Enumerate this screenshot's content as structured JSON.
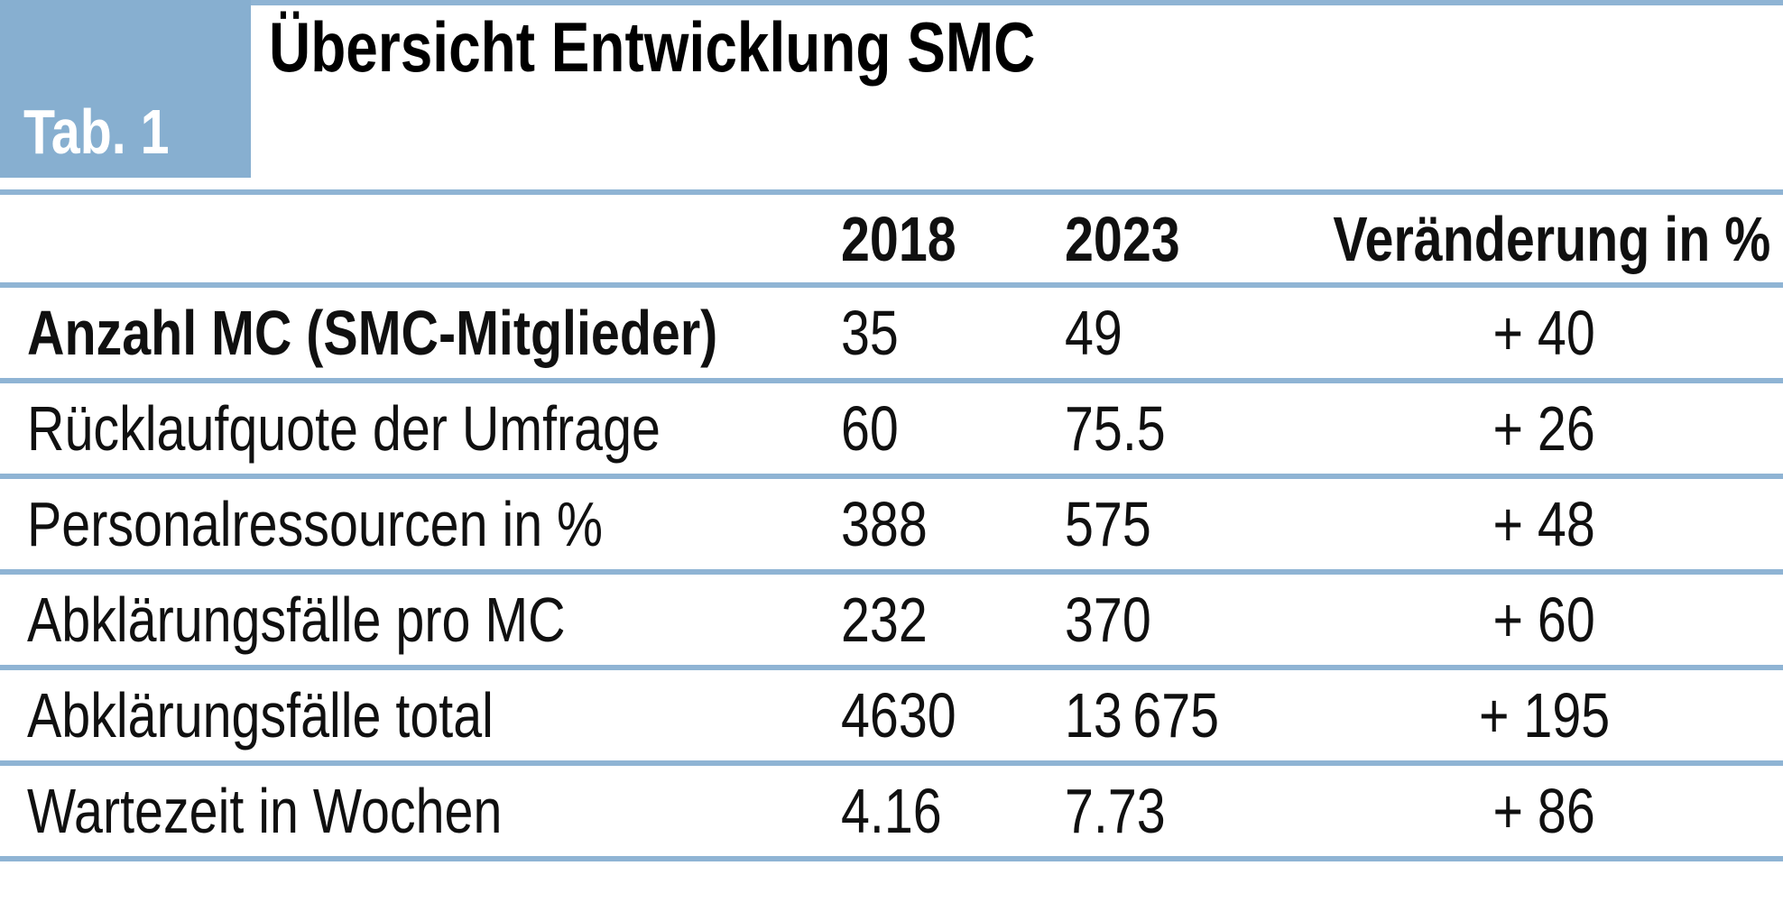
{
  "figure": {
    "tab_label": "Tab. 1",
    "title": "Übersicht Entwicklung SMC"
  },
  "table": {
    "header": {
      "year1": "2018",
      "year2": "2023",
      "change": "Veränderung in %"
    },
    "rows": [
      {
        "label": "Anzahl MC (SMC-Mitglieder)",
        "y2018": "35",
        "y2023": "49",
        "change": "+ 40"
      },
      {
        "label": "Rücklaufquote der Umfrage",
        "y2018": "60",
        "y2023": "75.5",
        "change": "+ 26"
      },
      {
        "label": "Personalressourcen in %",
        "y2018": "388",
        "y2023": "575",
        "change": "+ 48"
      },
      {
        "label": "Abklärungsfälle pro MC",
        "y2018": "232",
        "y2023": "370",
        "change": "+ 60"
      },
      {
        "label": "Abklärungsfälle total",
        "y2018": "4630",
        "y2023": "13 675",
        "change": "+ 195"
      },
      {
        "label": "Wartezeit in Wochen",
        "y2018": "4.16",
        "y2023": "7.73",
        "change": "+ 86"
      }
    ]
  },
  "colors": {
    "accent_blue": "#87AFD0",
    "rule_blue": "#8FB4D4",
    "text": "#101010",
    "badge_text": "#FFFFFF"
  },
  "chart_data": {
    "type": "table",
    "title": "Übersicht Entwicklung SMC",
    "caption_label": "Tab. 1",
    "columns": [
      "",
      "2018",
      "2023",
      "Veränderung in %"
    ],
    "rows": [
      [
        "Anzahl MC (SMC-Mitglieder)",
        35,
        49,
        "+ 40"
      ],
      [
        "Rücklaufquote der Umfrage",
        60,
        75.5,
        "+ 26"
      ],
      [
        "Personalressourcen in %",
        388,
        575,
        "+ 48"
      ],
      [
        "Abklärungsfälle pro MC",
        232,
        370,
        "+ 60"
      ],
      [
        "Abklärungsfälle total",
        4630,
        13675,
        "+ 195"
      ],
      [
        "Wartezeit in Wochen",
        4.16,
        7.73,
        "+ 86"
      ]
    ]
  }
}
